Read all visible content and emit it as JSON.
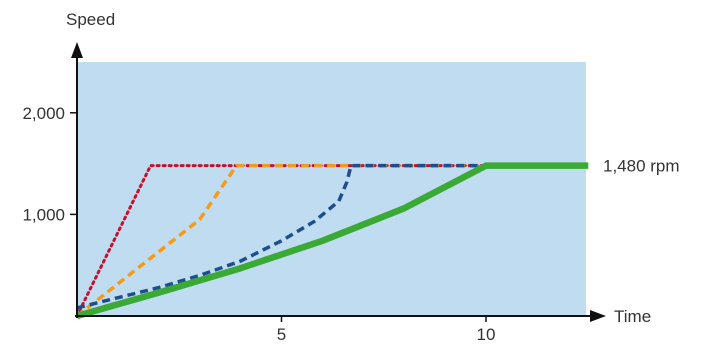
{
  "chart_data": {
    "type": "line",
    "title": "",
    "xlabel": "Time",
    "ylabel": "Speed",
    "xlim": [
      -5.2,
      12.5
    ],
    "ylim": [
      0,
      2500
    ],
    "xticks": [
      5,
      10
    ],
    "xtick_labels": [
      "5",
      "10"
    ],
    "yticks": [
      1000,
      2000
    ],
    "ytick_labels": [
      "1,000",
      "2,000"
    ],
    "grid": false,
    "background_color": "#c0dcf1",
    "annotation": "1,480 rpm",
    "annotation_y": 1480,
    "series": [
      {
        "color": "#c8102e",
        "style": "dotted",
        "x": [
          0,
          1.8,
          10
        ],
        "y": [
          0,
          1480,
          1480
        ]
      },
      {
        "color": "#f39c1b",
        "style": "dashed",
        "x": [
          0,
          3.0,
          3.9,
          10
        ],
        "y": [
          0,
          950,
          1480,
          1480
        ]
      },
      {
        "color": "#1f4e8c",
        "style": "dashed",
        "x": [
          0,
          1.0,
          2.0,
          3.0,
          4.0,
          5.0,
          5.8,
          6.4,
          6.6,
          6.7,
          10
        ],
        "y": [
          80,
          180,
          280,
          400,
          540,
          740,
          930,
          1130,
          1320,
          1480,
          1480
        ]
      },
      {
        "color": "#3aaa35",
        "style": "solid",
        "x": [
          0,
          2,
          4,
          6,
          8,
          10,
          12.5
        ],
        "y": [
          0,
          230,
          470,
          740,
          1060,
          1480,
          1480
        ]
      }
    ]
  }
}
